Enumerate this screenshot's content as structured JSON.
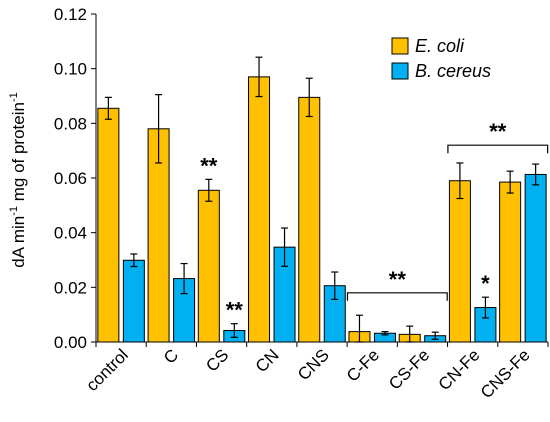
{
  "chart_data": {
    "type": "bar",
    "ylabel": "dA min",
    "ylabel_sup1": "-1",
    "ylabel_mid": " mg of protein",
    "ylabel_sup2": "-1",
    "ylim": [
      0,
      0.12
    ],
    "yticks": [
      "0.00",
      "0.02",
      "0.04",
      "0.06",
      "0.08",
      "0.10",
      "0.12"
    ],
    "categories": [
      "control",
      "C",
      "CS",
      "CN",
      "CNS",
      "C-Fe",
      "CS-Fe",
      "CN-Fe",
      "CNS-Fe"
    ],
    "series": [
      {
        "name": "E. coli",
        "color": "#FFC000",
        "values": [
          0.0855,
          0.078,
          0.0555,
          0.097,
          0.0895,
          0.0038,
          0.0028,
          0.059,
          0.0585
        ],
        "errors": [
          0.004,
          0.0125,
          0.004,
          0.0072,
          0.007,
          0.006,
          0.003,
          0.0065,
          0.004
        ]
      },
      {
        "name": "B. cereus",
        "color": "#00B0F0",
        "values": [
          0.0299,
          0.0232,
          0.0042,
          0.0347,
          0.0206,
          0.0032,
          0.0023,
          0.0126,
          0.0613
        ],
        "errors": [
          0.0023,
          0.0055,
          0.0025,
          0.007,
          0.005,
          0.0006,
          0.0013,
          0.0038,
          0.0038
        ]
      }
    ],
    "legend_position": "top-right",
    "annotations": [
      {
        "text": "**",
        "category": 2,
        "series": 0
      },
      {
        "text": "**",
        "category": 2,
        "series": 1
      },
      {
        "text": "*",
        "category": 7,
        "series": 1
      },
      {
        "text": "**",
        "bracket": [
          5,
          6
        ],
        "y": 0.018
      },
      {
        "text": "**",
        "bracket": [
          7,
          8
        ],
        "y": 0.072
      }
    ]
  }
}
